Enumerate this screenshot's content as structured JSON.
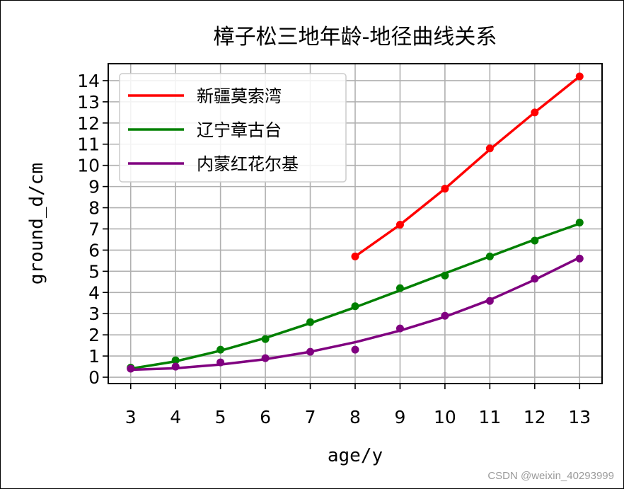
{
  "chart_data": {
    "type": "line",
    "title": "樟子松三地年龄-地径曲线关系",
    "xlabel": "age/y",
    "ylabel": "ground_d/cm",
    "xlim": [
      2.5,
      13.5
    ],
    "ylim": [
      -0.3,
      14.8
    ],
    "x_ticks": [
      3,
      4,
      5,
      6,
      7,
      8,
      9,
      10,
      11,
      12,
      13
    ],
    "y_ticks": [
      0,
      1,
      2,
      3,
      4,
      5,
      6,
      7,
      8,
      9,
      10,
      11,
      12,
      13,
      14
    ],
    "grid": true,
    "legend_position": "upper-left",
    "series": [
      {
        "name": "新疆莫索湾",
        "color": "#ff0000",
        "x": [
          8,
          9,
          10,
          11,
          12,
          13
        ],
        "line": [
          5.7,
          7.2,
          8.9,
          10.75,
          12.5,
          14.2
        ],
        "points": [
          5.7,
          7.2,
          8.9,
          10.8,
          12.5,
          14.2
        ]
      },
      {
        "name": "辽宁章古台",
        "color": "#008000",
        "x": [
          3,
          4,
          5,
          6,
          7,
          8,
          9,
          10,
          11,
          12,
          13
        ],
        "line": [
          0.4,
          0.75,
          1.25,
          1.85,
          2.55,
          3.3,
          4.1,
          4.9,
          5.7,
          6.5,
          7.25
        ],
        "points": [
          0.45,
          0.8,
          1.3,
          1.8,
          2.6,
          3.35,
          4.2,
          4.8,
          5.7,
          6.45,
          7.3
        ]
      },
      {
        "name": "内蒙红花尔基",
        "color": "#800080",
        "x": [
          3,
          4,
          5,
          6,
          7,
          8,
          9,
          10,
          11,
          12,
          13
        ],
        "line": [
          0.35,
          0.42,
          0.6,
          0.85,
          1.2,
          1.65,
          2.2,
          2.85,
          3.65,
          4.6,
          5.65
        ],
        "points": [
          0.4,
          0.5,
          0.7,
          0.9,
          1.2,
          1.3,
          2.3,
          2.9,
          3.6,
          4.65,
          5.6
        ]
      }
    ]
  },
  "watermark": "CSDN @weixin_40293999"
}
